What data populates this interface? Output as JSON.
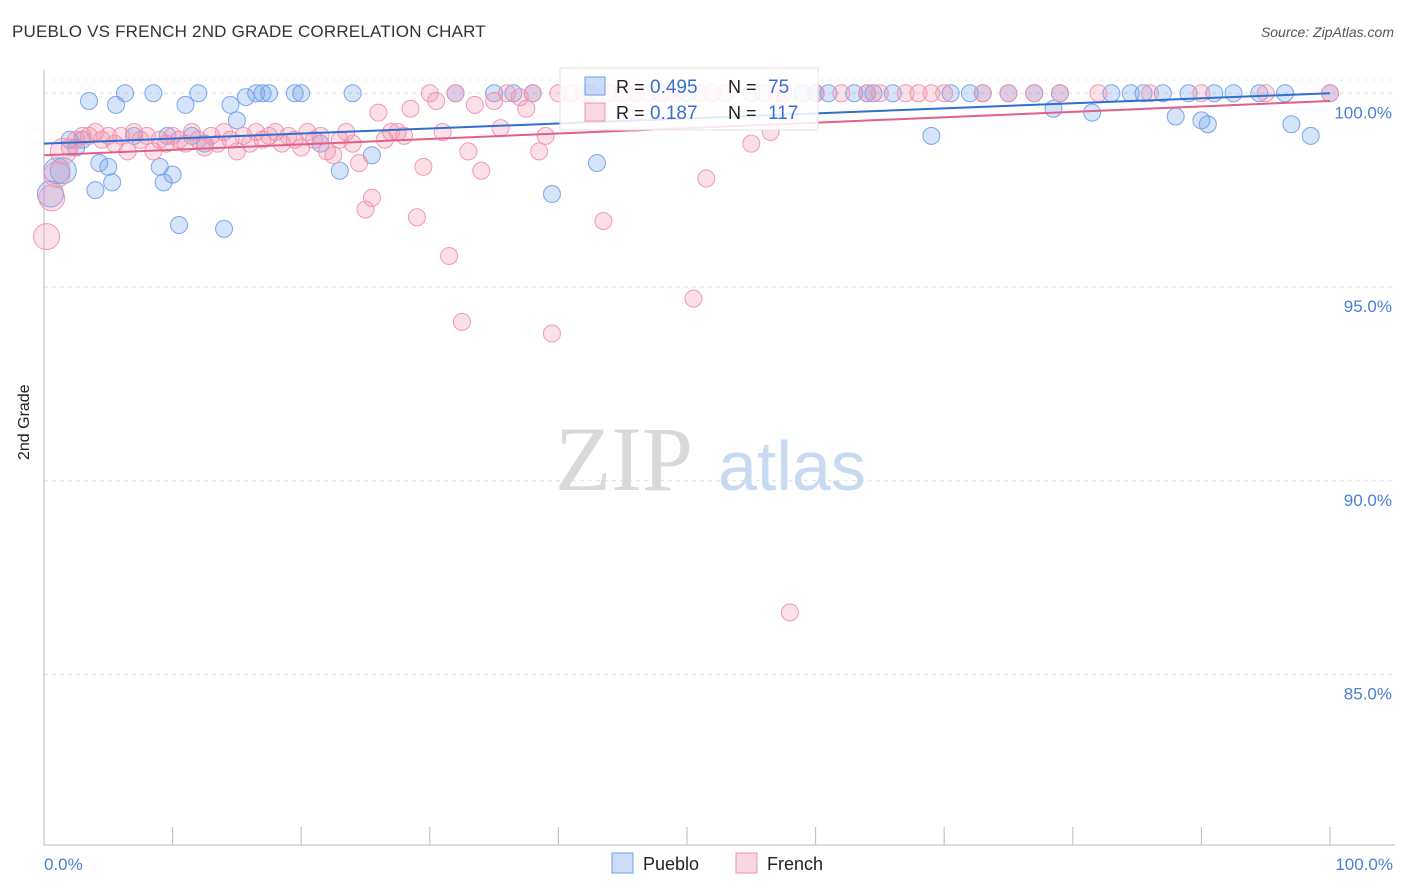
{
  "header": {
    "title": "PUEBLO VS FRENCH 2ND GRADE CORRELATION CHART",
    "source": "Source: ZipAtlas.com"
  },
  "watermark": {
    "zip": "ZIP",
    "atlas": "atlas"
  },
  "chart_data": {
    "type": "scatter",
    "title": "PUEBLO VS FRENCH 2ND GRADE CORRELATION CHART",
    "xlabel": "",
    "ylabel": "2nd Grade",
    "xlim": [
      0,
      100
    ],
    "ylim": [
      80.6,
      100.6
    ],
    "x_tick_labels": [
      "0.0%",
      "100.0%"
    ],
    "y_ticks": [
      {
        "value": 100,
        "label": "100.0%"
      },
      {
        "value": 95,
        "label": "95.0%"
      },
      {
        "value": 90,
        "label": "90.0%"
      },
      {
        "value": 85,
        "label": "85.0%"
      }
    ],
    "grid": true,
    "legend_position": "bottom-center",
    "stats": [
      {
        "series": "Pueblo",
        "r_label": "R =",
        "r_value": "0.495",
        "n_label": "N =",
        "n_value": "75"
      },
      {
        "series": "French",
        "r_label": "R =",
        "r_value": "0.187",
        "n_label": "N =",
        "n_value": "117"
      }
    ],
    "series": [
      {
        "name": "Pueblo",
        "color": "#6d9eeb",
        "line_color": "#2f6fd0",
        "trend": {
          "x": [
            0,
            100
          ],
          "y": [
            98.7,
            100.0
          ]
        },
        "points": [
          [
            0.5,
            97.4
          ],
          [
            1,
            98.0
          ],
          [
            1.5,
            98.0
          ],
          [
            2,
            98.8
          ],
          [
            2.5,
            98.6
          ],
          [
            3,
            98.8
          ],
          [
            3.5,
            99.8
          ],
          [
            4,
            97.5
          ],
          [
            4.3,
            98.2
          ],
          [
            5,
            98.1
          ],
          [
            5.3,
            97.7
          ],
          [
            5.6,
            99.7
          ],
          [
            6.3,
            100.0
          ],
          [
            7,
            98.9
          ],
          [
            8.5,
            100.0
          ],
          [
            9,
            98.1
          ],
          [
            9.3,
            97.7
          ],
          [
            9.6,
            98.9
          ],
          [
            10,
            97.9
          ],
          [
            10.5,
            96.6
          ],
          [
            11,
            99.7
          ],
          [
            11.5,
            98.9
          ],
          [
            12,
            100.0
          ],
          [
            12.5,
            98.7
          ],
          [
            14,
            96.5
          ],
          [
            14.5,
            99.7
          ],
          [
            15,
            99.3
          ],
          [
            15.7,
            99.9
          ],
          [
            16.5,
            100.0
          ],
          [
            17,
            100.0
          ],
          [
            17.5,
            100.0
          ],
          [
            19.5,
            100.0
          ],
          [
            20,
            100.0
          ],
          [
            21.5,
            98.7
          ],
          [
            23,
            98.0
          ],
          [
            24,
            100.0
          ],
          [
            25.5,
            98.4
          ],
          [
            32,
            100.0
          ],
          [
            35,
            100.0
          ],
          [
            36.5,
            100.0
          ],
          [
            38,
            100.0
          ],
          [
            39.5,
            97.4
          ],
          [
            42.5,
            100.0
          ],
          [
            43,
            98.2
          ],
          [
            48,
            100.0
          ],
          [
            50,
            100.0
          ],
          [
            55,
            100.0
          ],
          [
            59,
            100.0
          ],
          [
            60,
            100.0
          ],
          [
            61,
            100.0
          ],
          [
            63,
            100.0
          ],
          [
            64,
            100.0
          ],
          [
            64.5,
            100.0
          ],
          [
            66,
            100.0
          ],
          [
            69,
            98.9
          ],
          [
            70.5,
            100.0
          ],
          [
            72,
            100.0
          ],
          [
            73,
            100.0
          ],
          [
            75,
            100.0
          ],
          [
            77,
            100.0
          ],
          [
            78.5,
            99.6
          ],
          [
            79,
            100.0
          ],
          [
            81.5,
            99.5
          ],
          [
            83,
            100.0
          ],
          [
            84.5,
            100.0
          ],
          [
            85.5,
            100.0
          ],
          [
            87,
            100.0
          ],
          [
            88,
            99.4
          ],
          [
            89,
            100.0
          ],
          [
            90,
            99.3
          ],
          [
            90.5,
            99.2
          ],
          [
            91,
            100.0
          ],
          [
            92.5,
            100.0
          ],
          [
            94.5,
            100.0
          ],
          [
            96.5,
            100.0
          ],
          [
            97,
            99.2
          ],
          [
            98.5,
            98.9
          ],
          [
            100,
            100.0
          ]
        ]
      },
      {
        "name": "French",
        "color": "#f28fab",
        "line_color": "#e0608a",
        "trend": {
          "x": [
            0,
            100
          ],
          "y": [
            98.4,
            99.8
          ]
        },
        "points": [
          [
            0.2,
            96.3
          ],
          [
            0.6,
            97.3
          ],
          [
            1,
            97.9
          ],
          [
            1.5,
            98.5
          ],
          [
            2,
            98.6
          ],
          [
            2.5,
            98.8
          ],
          [
            3,
            98.9
          ],
          [
            3.5,
            98.9
          ],
          [
            4,
            99.0
          ],
          [
            4.5,
            98.8
          ],
          [
            5,
            98.9
          ],
          [
            5.5,
            98.7
          ],
          [
            6,
            98.9
          ],
          [
            6.5,
            98.5
          ],
          [
            7,
            99.0
          ],
          [
            7.5,
            98.8
          ],
          [
            8,
            98.9
          ],
          [
            8.5,
            98.5
          ],
          [
            9,
            98.8
          ],
          [
            9.5,
            98.7
          ],
          [
            10,
            98.9
          ],
          [
            10.5,
            98.8
          ],
          [
            11,
            98.7
          ],
          [
            11.5,
            99.0
          ],
          [
            12,
            98.8
          ],
          [
            12.5,
            98.6
          ],
          [
            13,
            98.9
          ],
          [
            13.5,
            98.7
          ],
          [
            14,
            99.0
          ],
          [
            14.5,
            98.8
          ],
          [
            15,
            98.5
          ],
          [
            15.5,
            98.9
          ],
          [
            16,
            98.7
          ],
          [
            16.5,
            99.0
          ],
          [
            17,
            98.8
          ],
          [
            17.5,
            98.9
          ],
          [
            18,
            99.0
          ],
          [
            18.5,
            98.7
          ],
          [
            19,
            98.9
          ],
          [
            19.5,
            98.8
          ],
          [
            20,
            98.6
          ],
          [
            20.5,
            99.0
          ],
          [
            21,
            98.8
          ],
          [
            21.5,
            98.9
          ],
          [
            22,
            98.5
          ],
          [
            22.5,
            98.4
          ],
          [
            23,
            98.8
          ],
          [
            23.5,
            99.0
          ],
          [
            24,
            98.7
          ],
          [
            24.5,
            98.2
          ],
          [
            25,
            97.0
          ],
          [
            25.5,
            97.3
          ],
          [
            26,
            99.5
          ],
          [
            26.5,
            98.8
          ],
          [
            27,
            99.0
          ],
          [
            27.5,
            99.0
          ],
          [
            28,
            98.9
          ],
          [
            28.5,
            99.6
          ],
          [
            29,
            96.8
          ],
          [
            29.5,
            98.1
          ],
          [
            30,
            100.0
          ],
          [
            30.5,
            99.8
          ],
          [
            31,
            99.0
          ],
          [
            31.5,
            95.8
          ],
          [
            32,
            100.0
          ],
          [
            32.5,
            94.1
          ],
          [
            33,
            98.5
          ],
          [
            33.5,
            99.7
          ],
          [
            34,
            98.0
          ],
          [
            35,
            99.8
          ],
          [
            35.5,
            99.1
          ],
          [
            36,
            100.0
          ],
          [
            37,
            99.9
          ],
          [
            37.5,
            99.6
          ],
          [
            38,
            100.0
          ],
          [
            38.5,
            98.5
          ],
          [
            39,
            98.9
          ],
          [
            39.5,
            93.8
          ],
          [
            40,
            100.0
          ],
          [
            41,
            100.0
          ],
          [
            42,
            100.0
          ],
          [
            43.5,
            96.7
          ],
          [
            44,
            100.0
          ],
          [
            45,
            100.0
          ],
          [
            46,
            100.0
          ],
          [
            47,
            100.0
          ],
          [
            48,
            100.0
          ],
          [
            49,
            100.0
          ],
          [
            50.5,
            94.7
          ],
          [
            51,
            100.0
          ],
          [
            51.5,
            97.8
          ],
          [
            52,
            100.0
          ],
          [
            53,
            100.0
          ],
          [
            55,
            98.7
          ],
          [
            56,
            100.0
          ],
          [
            56.5,
            99.0
          ],
          [
            57,
            100.0
          ],
          [
            57.5,
            100.0
          ],
          [
            58,
            86.6
          ],
          [
            60,
            100.0
          ],
          [
            62,
            100.0
          ],
          [
            64,
            100.0
          ],
          [
            65,
            100.0
          ],
          [
            67,
            100.0
          ],
          [
            68,
            100.0
          ],
          [
            69,
            100.0
          ],
          [
            70,
            100.0
          ],
          [
            73,
            100.0
          ],
          [
            75,
            100.0
          ],
          [
            77,
            100.0
          ],
          [
            79,
            100.0
          ],
          [
            82,
            100.0
          ],
          [
            86,
            100.0
          ],
          [
            90,
            100.0
          ],
          [
            95,
            100.0
          ],
          [
            100,
            100.0
          ]
        ]
      }
    ]
  }
}
